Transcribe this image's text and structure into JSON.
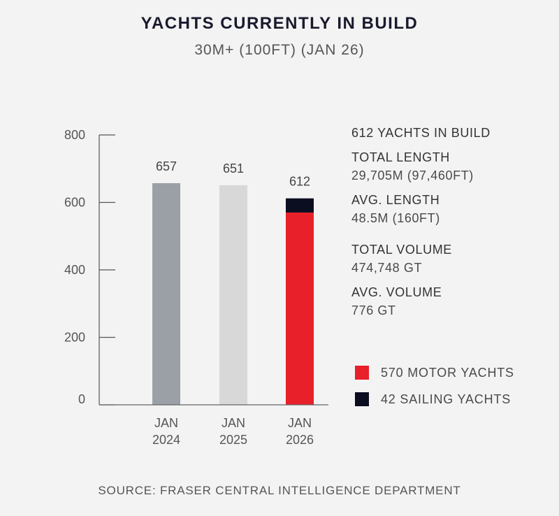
{
  "title": "YACHTS CURRENTLY IN BUILD",
  "subtitle": "30M+ (100FT) (JAN 26)",
  "chart_data": {
    "type": "bar",
    "stacked": true,
    "categories": [
      [
        "JAN",
        "2024"
      ],
      [
        "JAN",
        "2025"
      ],
      [
        "JAN",
        "2026"
      ]
    ],
    "totals": [
      657,
      651,
      612
    ],
    "bars": [
      {
        "segments": [
          {
            "value": 657,
            "color": "#9aa0a6"
          }
        ]
      },
      {
        "segments": [
          {
            "value": 651,
            "color": "#d8d8d8"
          }
        ]
      },
      {
        "segments": [
          {
            "value": 570,
            "color": "#e8202a"
          },
          {
            "value": 42,
            "color": "#0b0d21"
          }
        ]
      }
    ],
    "ylim": [
      0,
      800
    ],
    "yticks": [
      0,
      200,
      400,
      600,
      800
    ],
    "grid": false,
    "legend_placement": "right"
  },
  "stats": {
    "heading": "612 YACHTS IN BUILD",
    "items": [
      {
        "label": "TOTAL LENGTH",
        "value": "29,705M (97,460FT)"
      },
      {
        "label": "AVG. LENGTH",
        "value": "48.5M (160FT)"
      },
      {
        "label": "TOTAL VOLUME",
        "value": "474,748 GT"
      },
      {
        "label": "AVG. VOLUME",
        "value": "776 GT"
      }
    ]
  },
  "legend": [
    {
      "label": "570 MOTOR YACHTS",
      "color": "#e8202a"
    },
    {
      "label": "42 SAILING YACHTS",
      "color": "#0b0d21"
    }
  ],
  "source": "SOURCE: FRASER CENTRAL INTELLIGENCE DEPARTMENT"
}
